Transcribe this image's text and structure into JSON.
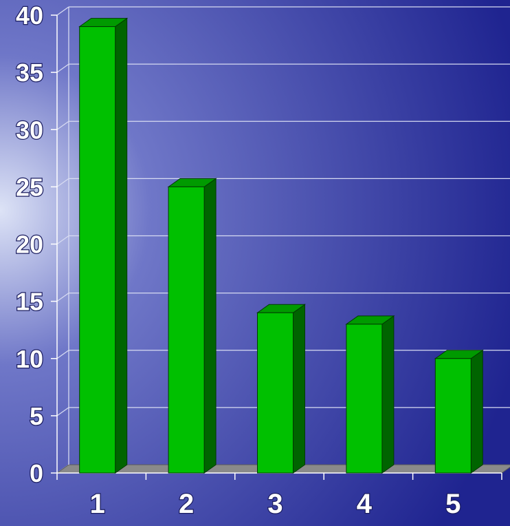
{
  "chart_data": {
    "type": "bar",
    "title": "",
    "xlabel": "",
    "ylabel": "",
    "categories": [
      "1",
      "2",
      "3",
      "4",
      "5"
    ],
    "values": [
      39,
      25,
      14,
      13,
      10
    ],
    "ylim": [
      0,
      40
    ],
    "yticks": [
      "0",
      "5",
      "10",
      "15",
      "20",
      "25",
      "30",
      "35",
      "40"
    ],
    "grid": true,
    "legend": "none",
    "three_d": true,
    "colors": {
      "bar_front": "#00c000",
      "bar_top": "#009a00",
      "bar_side": "#006400",
      "bar_edge": "#003a00",
      "gridline": "#d8dcf2",
      "floor": "#8a8a8a",
      "axis": "#ffffff",
      "background_light": "#dde3f6",
      "background_mid": "#6f77c8",
      "background_dark": "#1f2490"
    }
  }
}
